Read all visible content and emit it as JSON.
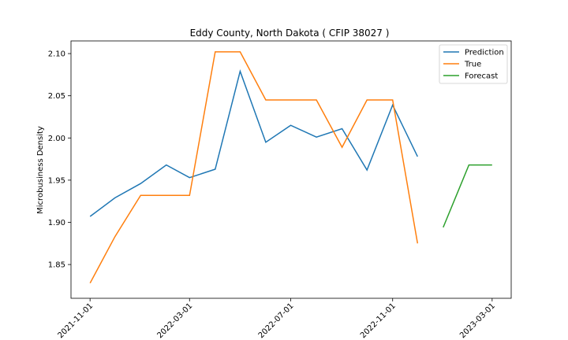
{
  "chart_data": {
    "type": "line",
    "title": "Eddy County, North Dakota ( CFIP 38027 )",
    "xlabel": "",
    "ylabel": "Microbusiness Density",
    "ylim": [
      1.81,
      2.115
    ],
    "xlim": [
      "2021-10-09",
      "2023-03-24"
    ],
    "x_ticks": [
      "2021-11-01",
      "2022-03-01",
      "2022-07-01",
      "2022-11-01",
      "2023-03-01"
    ],
    "y_ticks": [
      1.85,
      1.9,
      1.95,
      2.0,
      2.05,
      2.1
    ],
    "y_tick_labels": [
      "1.85",
      "1.90",
      "1.95",
      "2.00",
      "2.05",
      "2.10"
    ],
    "legend_position": "top-right",
    "grid": false,
    "series": [
      {
        "name": "Prediction",
        "color": "#1f77b4",
        "x": [
          "2021-11-01",
          "2021-12-01",
          "2022-01-01",
          "2022-02-01",
          "2022-03-01",
          "2022-04-01",
          "2022-05-01",
          "2022-06-01",
          "2022-07-01",
          "2022-08-01",
          "2022-09-01",
          "2022-10-01",
          "2022-11-01",
          "2022-12-01"
        ],
        "values": [
          1.907,
          1.929,
          1.946,
          1.968,
          1.953,
          1.963,
          2.079,
          1.995,
          2.015,
          2.001,
          2.011,
          1.962,
          2.039,
          1.978
        ]
      },
      {
        "name": "True",
        "color": "#ff7f0e",
        "x": [
          "2021-11-01",
          "2021-12-01",
          "2022-01-01",
          "2022-02-01",
          "2022-03-01",
          "2022-04-01",
          "2022-05-01",
          "2022-06-01",
          "2022-07-01",
          "2022-08-01",
          "2022-09-01",
          "2022-10-01",
          "2022-11-01",
          "2022-12-01"
        ],
        "values": [
          1.828,
          1.883,
          1.932,
          1.932,
          1.932,
          2.102,
          2.102,
          2.045,
          2.045,
          2.045,
          1.989,
          2.045,
          2.045,
          1.875
        ]
      },
      {
        "name": "Forecast",
        "color": "#2ca02c",
        "x": [
          "2023-01-01",
          "2023-02-01",
          "2023-03-01"
        ],
        "values": [
          1.894,
          1.968,
          1.968
        ]
      }
    ]
  }
}
